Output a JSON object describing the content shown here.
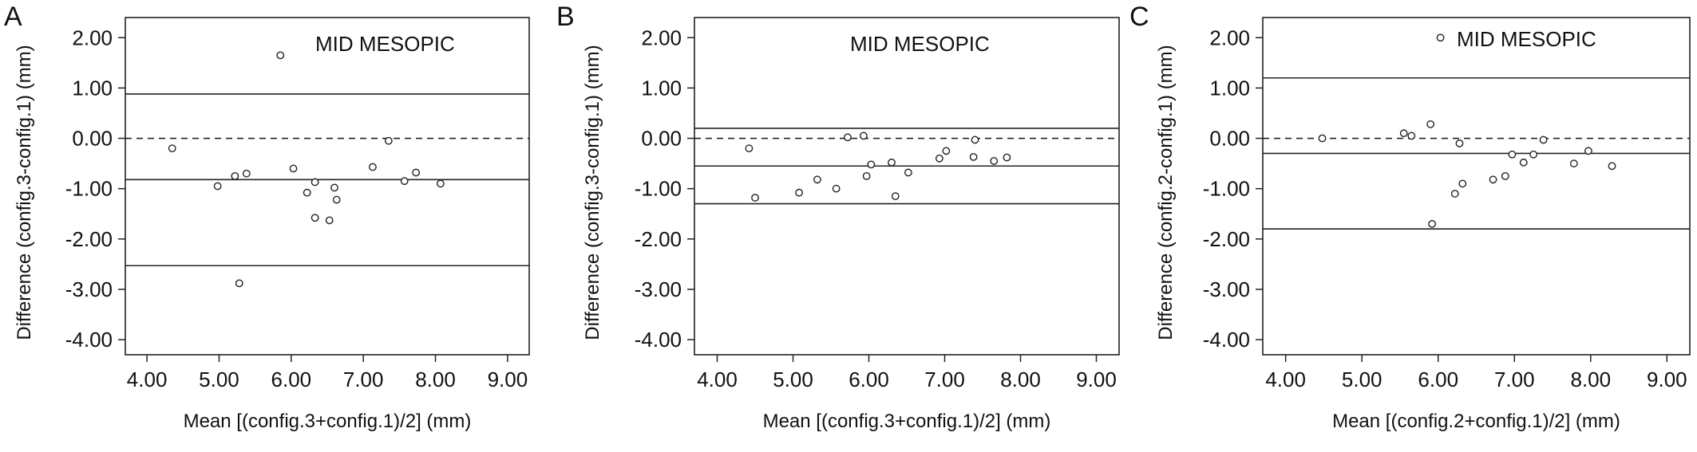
{
  "chart_data": [
    {
      "type": "scatter",
      "panel_label": "A",
      "annotation": "MID MESOPIC",
      "xlabel": "Mean [(config.3+config.1)/2] (mm)",
      "ylabel": "Difference (config.3-config.1) (mm)",
      "xlim": [
        3.7,
        9.3
      ],
      "ylim": [
        -4.3,
        2.4
      ],
      "x_ticks": [
        "4.00",
        "5.00",
        "6.00",
        "7.00",
        "8.00",
        "9.00"
      ],
      "y_ticks": [
        "2.00",
        "1.00",
        "0.00",
        "-1.00",
        "-2.00",
        "-3.00",
        "-4.00"
      ],
      "reference_lines": {
        "upper_limit": 0.88,
        "mean_difference": -0.82,
        "lower_limit": -2.53,
        "zero": 0.0
      },
      "points": [
        {
          "x": 4.35,
          "y": -0.2
        },
        {
          "x": 4.98,
          "y": -0.95
        },
        {
          "x": 5.22,
          "y": -0.75
        },
        {
          "x": 5.28,
          "y": -2.88
        },
        {
          "x": 5.38,
          "y": -0.7
        },
        {
          "x": 5.85,
          "y": 1.65
        },
        {
          "x": 6.03,
          "y": -0.6
        },
        {
          "x": 6.22,
          "y": -1.08
        },
        {
          "x": 6.33,
          "y": -0.87
        },
        {
          "x": 6.33,
          "y": -1.58
        },
        {
          "x": 6.53,
          "y": -1.63
        },
        {
          "x": 6.6,
          "y": -0.98
        },
        {
          "x": 6.63,
          "y": -1.22
        },
        {
          "x": 7.13,
          "y": -0.57
        },
        {
          "x": 7.35,
          "y": -0.05
        },
        {
          "x": 7.57,
          "y": -0.85
        },
        {
          "x": 7.73,
          "y": -0.68
        },
        {
          "x": 8.07,
          "y": -0.9
        }
      ]
    },
    {
      "type": "scatter",
      "panel_label": "B",
      "annotation": "MID MESOPIC",
      "xlabel": "Mean [(config.3+config.1)/2] (mm)",
      "ylabel": "Difference (config.3-config.1) (mm)",
      "xlim": [
        3.7,
        9.3
      ],
      "ylim": [
        -4.3,
        2.4
      ],
      "x_ticks": [
        "4.00",
        "5.00",
        "6.00",
        "7.00",
        "8.00",
        "9.00"
      ],
      "y_ticks": [
        "2.00",
        "1.00",
        "0.00",
        "-1.00",
        "-2.00",
        "-3.00",
        "-4.00"
      ],
      "reference_lines": {
        "upper_limit": 0.2,
        "mean_difference": -0.55,
        "lower_limit": -1.3,
        "zero": 0.0
      },
      "points": [
        {
          "x": 4.42,
          "y": -0.2
        },
        {
          "x": 4.5,
          "y": -1.18
        },
        {
          "x": 5.08,
          "y": -1.08
        },
        {
          "x": 5.32,
          "y": -0.82
        },
        {
          "x": 5.57,
          "y": -1.0
        },
        {
          "x": 5.72,
          "y": 0.02
        },
        {
          "x": 5.93,
          "y": 0.05
        },
        {
          "x": 5.97,
          "y": -0.75
        },
        {
          "x": 6.03,
          "y": -0.52
        },
        {
          "x": 6.3,
          "y": -0.48
        },
        {
          "x": 6.35,
          "y": -1.15
        },
        {
          "x": 6.52,
          "y": -0.68
        },
        {
          "x": 6.93,
          "y": -0.4
        },
        {
          "x": 7.02,
          "y": -0.25
        },
        {
          "x": 7.38,
          "y": -0.37
        },
        {
          "x": 7.4,
          "y": -0.03
        },
        {
          "x": 7.65,
          "y": -0.45
        },
        {
          "x": 7.82,
          "y": -0.38
        }
      ]
    },
    {
      "type": "scatter",
      "panel_label": "C",
      "annotation": "MID MESOPIC",
      "xlabel": "Mean [(config.2+config.1)/2] (mm)",
      "ylabel": "Difference (config.2-config.1) (mm)",
      "xlim": [
        3.7,
        9.3
      ],
      "ylim": [
        -4.3,
        2.4
      ],
      "x_ticks": [
        "4.00",
        "5.00",
        "6.00",
        "7.00",
        "8.00",
        "9.00"
      ],
      "y_ticks": [
        "2.00",
        "1.00",
        "0.00",
        "-1.00",
        "-2.00",
        "-3.00",
        "-4.00"
      ],
      "reference_lines": {
        "upper_limit": 1.2,
        "mean_difference": -0.3,
        "lower_limit": -1.8,
        "zero": 0.0
      },
      "points": [
        {
          "x": 4.48,
          "y": 0.0
        },
        {
          "x": 5.55,
          "y": 0.1
        },
        {
          "x": 5.65,
          "y": 0.05
        },
        {
          "x": 5.9,
          "y": 0.28
        },
        {
          "x": 5.92,
          "y": -1.7
        },
        {
          "x": 6.03,
          "y": 2.0
        },
        {
          "x": 6.22,
          "y": -1.1
        },
        {
          "x": 6.28,
          "y": -0.1
        },
        {
          "x": 6.32,
          "y": -0.9
        },
        {
          "x": 6.72,
          "y": -0.82
        },
        {
          "x": 6.88,
          "y": -0.75
        },
        {
          "x": 6.97,
          "y": -0.32
        },
        {
          "x": 7.12,
          "y": -0.48
        },
        {
          "x": 7.25,
          "y": -0.32
        },
        {
          "x": 7.38,
          "y": -0.03
        },
        {
          "x": 7.78,
          "y": -0.5
        },
        {
          "x": 7.97,
          "y": -0.25
        },
        {
          "x": 8.28,
          "y": -0.55
        }
      ]
    }
  ]
}
